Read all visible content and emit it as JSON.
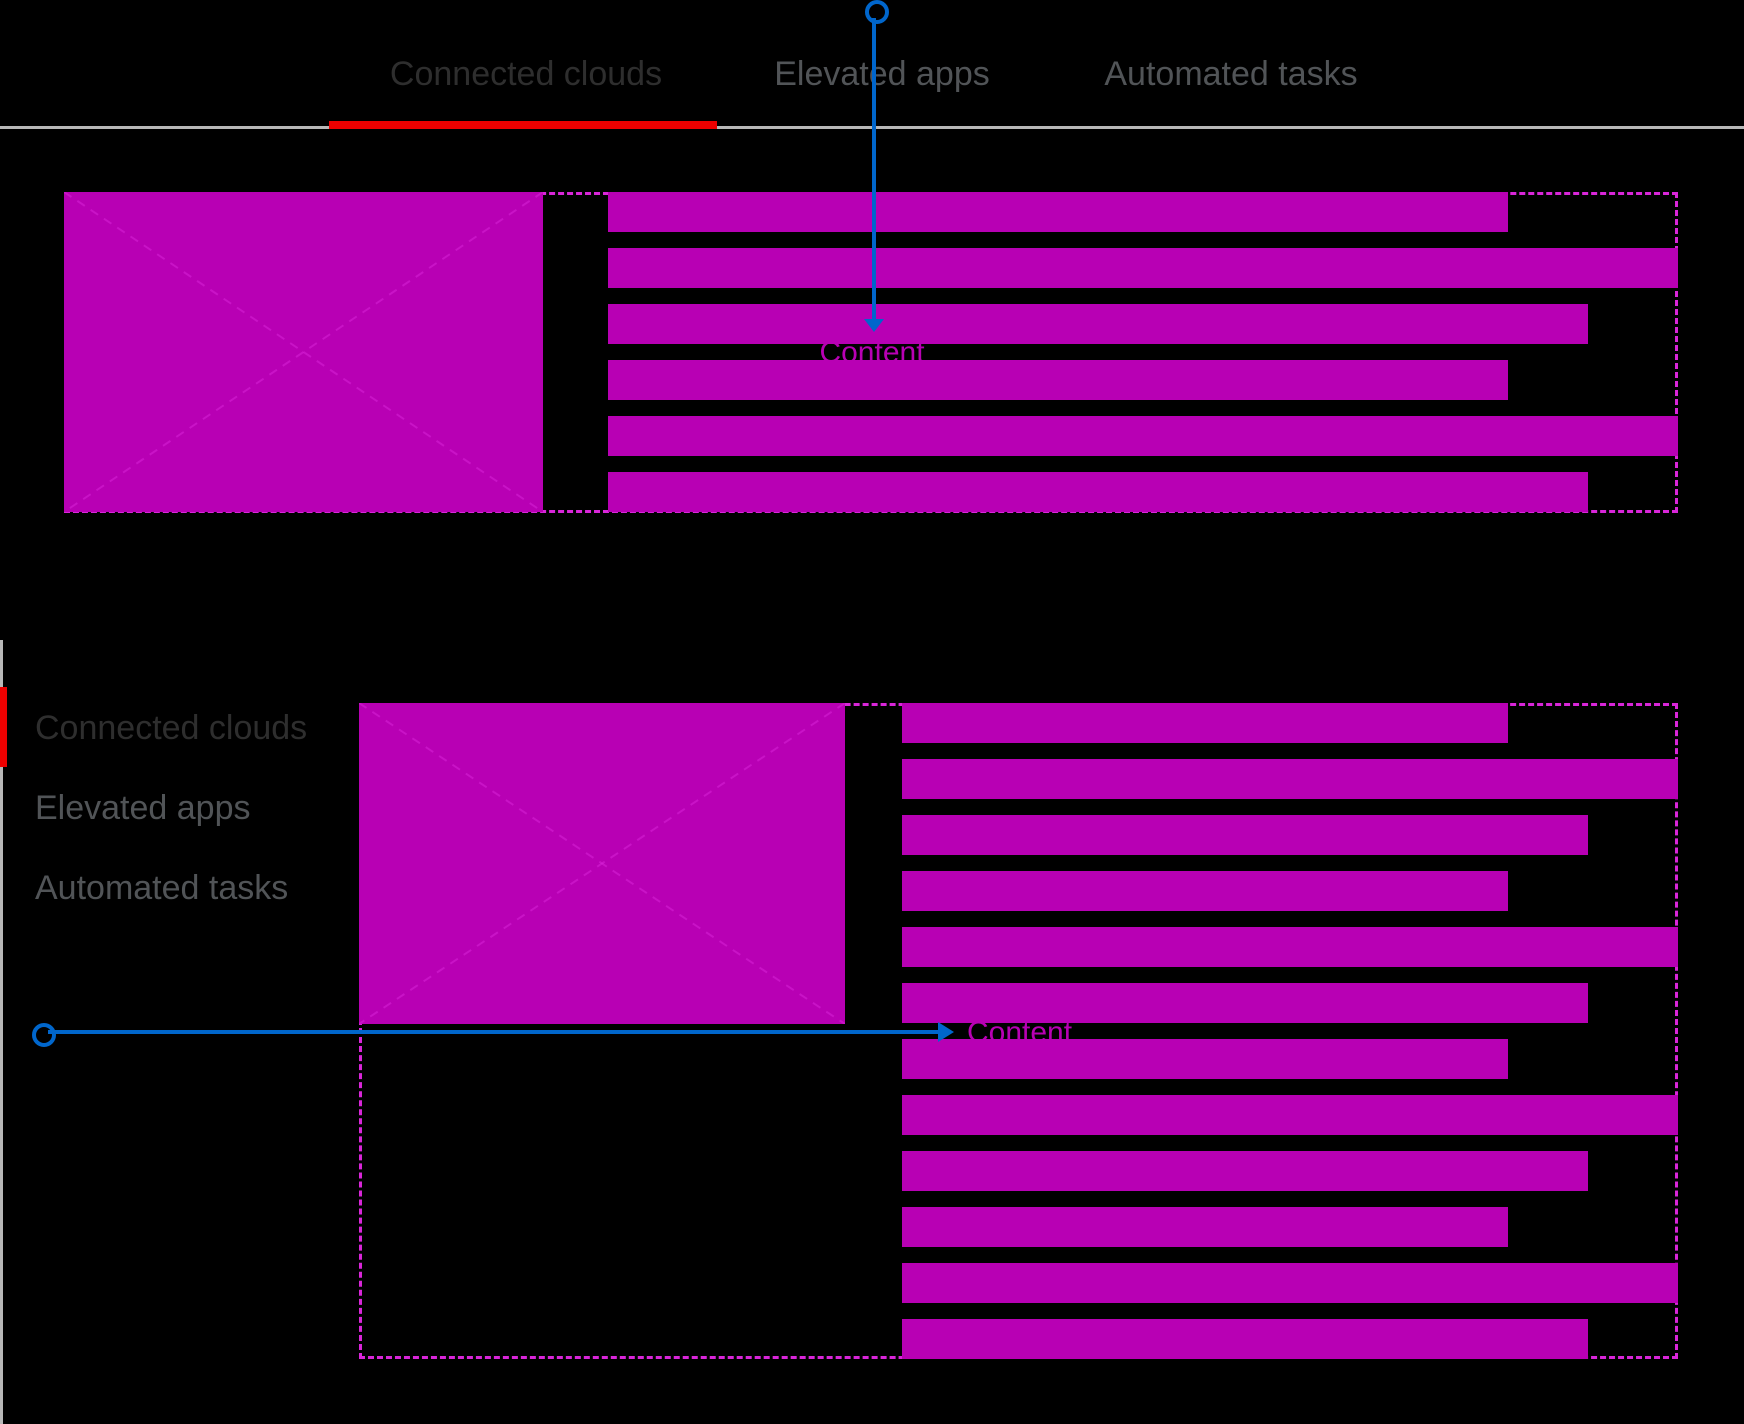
{
  "colors": {
    "background": "#000000",
    "magenta": "#b800b4",
    "magenta_dash": "#d926d9",
    "blue": "#0066cc",
    "red": "#ee0000",
    "gray": "#b8b8b8",
    "tab_active": "#2e2e2e",
    "tab_inactive": "#515457"
  },
  "tabs": {
    "horizontal": {
      "items": [
        {
          "label": "Connected clouds",
          "active": true
        },
        {
          "label": "Elevated apps",
          "active": false
        },
        {
          "label": "Automated tasks",
          "active": false
        }
      ]
    },
    "vertical": {
      "items": [
        {
          "label": "Connected clouds",
          "active": true
        },
        {
          "label": "Elevated apps",
          "active": false
        },
        {
          "label": "Automated tasks",
          "active": false
        }
      ]
    }
  },
  "annotations": {
    "top_label": "Content",
    "bottom_label": "Content"
  },
  "skeleton_top": {
    "bars": [
      "short",
      "full",
      "medium",
      "short",
      "full",
      "medium"
    ]
  },
  "skeleton_bottom": {
    "bars": [
      "short",
      "full",
      "medium",
      "short",
      "full",
      "medium",
      "short",
      "full",
      "medium",
      "short",
      "full",
      "medium"
    ]
  }
}
